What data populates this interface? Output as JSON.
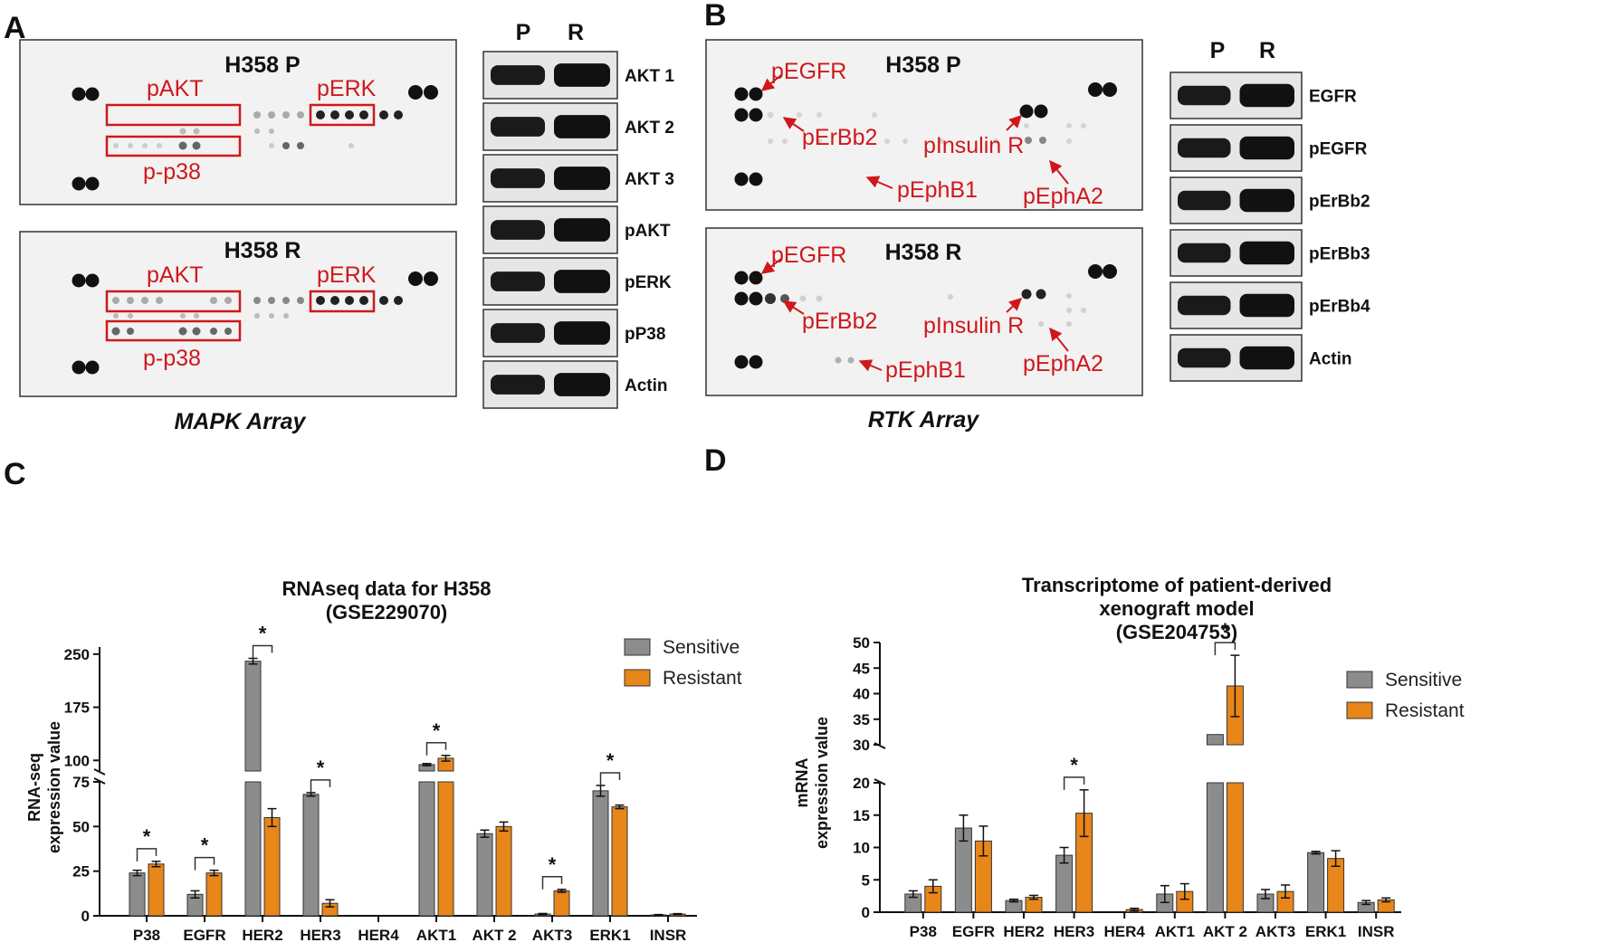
{
  "panels": {
    "A": {
      "letter": "A",
      "caption": "MAPK Array",
      "array_top_title": "H358 P",
      "array_bottom_title": "H358 R",
      "labels_top": [
        "pAKT",
        "pERK",
        "p-p38"
      ],
      "labels_bottom": [
        "pAKT",
        "pERK",
        "p-p38"
      ],
      "blot_columns": [
        "P",
        "R"
      ],
      "blot_rows": [
        "AKT 1",
        "AKT 2",
        "AKT 3",
        "pAKT",
        "pERK",
        "pP38",
        "Actin"
      ]
    },
    "B": {
      "letter": "B",
      "caption": "RTK Array",
      "array_top_title": "H358 P",
      "array_bottom_title": "H358 R",
      "labels_top": [
        "pEGFR",
        "pErBb2",
        "pInsulin R",
        "pEphB1",
        "pEphA2"
      ],
      "labels_bottom": [
        "pEGFR",
        "pErBb2",
        "pInsulin R",
        "pEphB1",
        "pEphA2"
      ],
      "blot_columns": [
        "P",
        "R"
      ],
      "blot_rows": [
        "EGFR",
        "pEGFR",
        "pErBb2",
        "pErBb3",
        "pErBb4",
        "Actin"
      ]
    },
    "C": {
      "letter": "C"
    },
    "D": {
      "letter": "D"
    }
  },
  "colors": {
    "sensitive": "#8c8c8c",
    "resistant": "#e8861a",
    "red": "#d0181c"
  },
  "chart_data": [
    {
      "id": "C",
      "type": "bar",
      "title_lines": [
        "RNAseq data for H358",
        "(GSE229070)"
      ],
      "ylabel_lines": [
        "RNA-seq",
        "expression value"
      ],
      "categories": [
        "P38",
        "EGFR",
        "HER2",
        "HER3",
        "HER4",
        "AKT1",
        "AKT 2",
        "AKT3",
        "ERK1",
        "INSR"
      ],
      "series": [
        {
          "name": "Sensitive",
          "values": [
            24,
            12,
            240,
            68,
            0,
            94,
            46,
            1,
            70,
            0.5
          ],
          "errors": [
            1.5,
            2,
            4,
            1,
            0,
            1.5,
            2,
            0.3,
            3,
            0.2
          ]
        },
        {
          "name": "Resistant",
          "values": [
            29,
            24,
            55,
            7,
            0,
            103,
            50,
            14,
            61,
            1
          ],
          "errors": [
            1.5,
            1.5,
            5,
            2,
            0,
            4,
            2.5,
            0.8,
            1,
            0.2
          ]
        }
      ],
      "axis_break": {
        "lower": [
          0,
          75
        ],
        "upper": [
          85,
          260
        ]
      },
      "yticks_lower": [
        0,
        25,
        50,
        75
      ],
      "yticks_upper": [
        100,
        175,
        250
      ],
      "significance": [
        "*",
        "*",
        "*",
        "*",
        "*",
        "*",
        "*"
      ],
      "significant_categories": [
        "P38",
        "EGFR",
        "HER2",
        "HER3",
        "AKT1",
        "AKT3",
        "ERK1"
      ],
      "legend": [
        "Sensitive",
        "Resistant"
      ]
    },
    {
      "id": "D",
      "type": "bar",
      "title_lines": [
        "Transcriptome of patient-derived",
        "xenograft  model",
        "(GSE204753)"
      ],
      "ylabel_lines": [
        "mRNA",
        "expression value"
      ],
      "categories": [
        "P38",
        "EGFR",
        "HER2",
        "HER3",
        "HER4",
        "AKT1",
        "AKT 2",
        "AKT3",
        "ERK1",
        "INSR"
      ],
      "series": [
        {
          "name": "Sensitive",
          "values": [
            2.8,
            13,
            1.8,
            8.8,
            0,
            2.8,
            32,
            2.8,
            9.2,
            1.5
          ],
          "errors": [
            0.5,
            2,
            0.2,
            1.2,
            0,
            1.3,
            0,
            0.7,
            0.2,
            0.3
          ]
        },
        {
          "name": "Resistant",
          "values": [
            4,
            11,
            2.3,
            15.3,
            0.4,
            3.2,
            41.5,
            3.2,
            8.3,
            1.9
          ],
          "errors": [
            1,
            2.3,
            0.3,
            3.6,
            0.2,
            1.2,
            6,
            1,
            1.2,
            0.3
          ]
        }
      ],
      "axis_break": {
        "lower": [
          0,
          20
        ],
        "upper": [
          30,
          50
        ]
      },
      "yticks_lower": [
        0,
        5,
        10,
        15,
        20
      ],
      "yticks_upper": [
        30,
        35,
        40,
        45,
        50
      ],
      "significance": [
        "*",
        "*"
      ],
      "significant_categories": [
        "HER3",
        "AKT 2"
      ],
      "legend": [
        "Sensitive",
        "Resistant"
      ]
    }
  ]
}
